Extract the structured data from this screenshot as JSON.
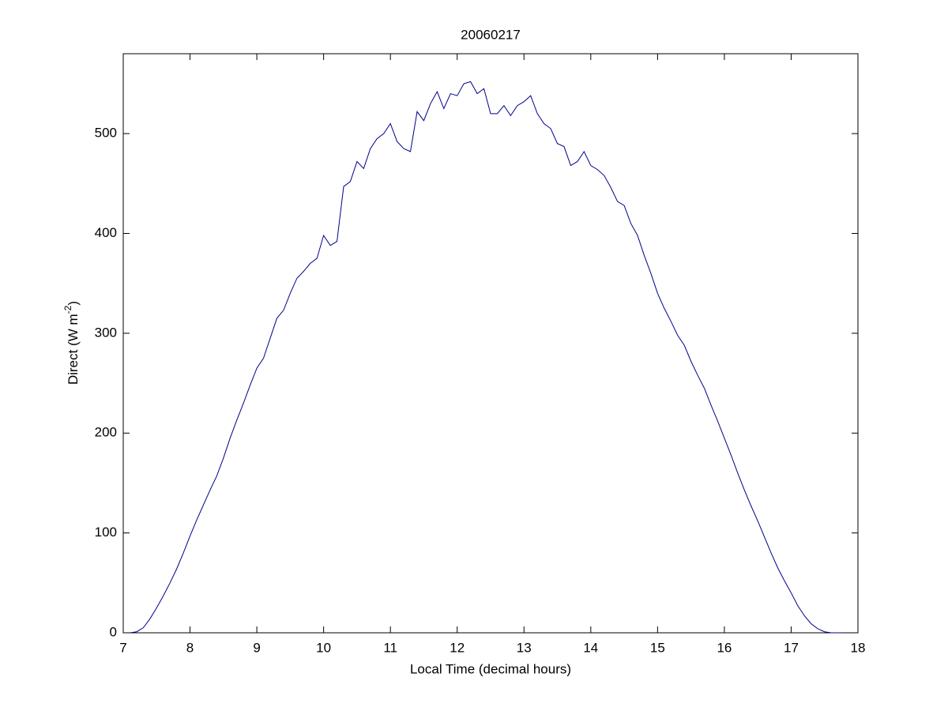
{
  "chart_data": {
    "type": "line",
    "title": "20060217",
    "xlabel": "Local Time (decimal hours)",
    "ylabel": "Direct (W m",
    "ylabel_superscript": "-2",
    "ylabel_suffix": ")",
    "xlim": [
      7,
      18
    ],
    "xticks": [
      7,
      8,
      9,
      10,
      11,
      12,
      13,
      14,
      15,
      16,
      17,
      18
    ],
    "ylim": [
      0,
      580
    ],
    "yticks": [
      0,
      100,
      200,
      300,
      400,
      500
    ],
    "grid": false,
    "series": [
      {
        "color": "#00008b",
        "x": [
          7.1,
          7.2,
          7.3,
          7.4,
          7.5,
          7.6,
          7.7,
          7.8,
          7.9,
          8.0,
          8.1,
          8.2,
          8.3,
          8.4,
          8.5,
          8.6,
          8.7,
          8.8,
          8.9,
          9.0,
          9.1,
          9.2,
          9.3,
          9.4,
          9.5,
          9.6,
          9.7,
          9.8,
          9.9,
          10.0,
          10.1,
          10.2,
          10.3,
          10.4,
          10.5,
          10.6,
          10.7,
          10.8,
          10.9,
          11.0,
          11.1,
          11.2,
          11.3,
          11.4,
          11.5,
          11.6,
          11.7,
          11.8,
          11.9,
          12.0,
          12.1,
          12.2,
          12.3,
          12.4,
          12.5,
          12.6,
          12.7,
          12.8,
          12.9,
          13.0,
          13.1,
          13.2,
          13.3,
          13.4,
          13.5,
          13.6,
          13.7,
          13.8,
          13.9,
          14.0,
          14.1,
          14.2,
          14.3,
          14.4,
          14.5,
          14.6,
          14.7,
          14.8,
          14.9,
          15.0,
          15.1,
          15.2,
          15.3,
          15.4,
          15.5,
          15.6,
          15.7,
          15.8,
          15.9,
          16.0,
          16.1,
          16.2,
          16.3,
          16.4,
          16.5,
          16.6,
          16.7,
          16.8,
          16.9,
          17.0,
          17.1,
          17.2,
          17.3,
          17.4,
          17.5,
          17.6,
          17.75
        ],
        "values": [
          0,
          1,
          5,
          14,
          25,
          37,
          50,
          64,
          80,
          97,
          113,
          128,
          143,
          157,
          175,
          195,
          213,
          230,
          248,
          265,
          275,
          295,
          315,
          323,
          340,
          355,
          362,
          370,
          375,
          398,
          388,
          392,
          447,
          452,
          472,
          465,
          485,
          495,
          500,
          510,
          492,
          485,
          482,
          522,
          513,
          530,
          542,
          525,
          540,
          538,
          550,
          552,
          540,
          545,
          520,
          520,
          528,
          518,
          528,
          532,
          538,
          520,
          510,
          505,
          490,
          487,
          468,
          472,
          482,
          468,
          464,
          458,
          446,
          432,
          428,
          410,
          398,
          378,
          360,
          340,
          325,
          312,
          298,
          288,
          272,
          258,
          245,
          228,
          212,
          195,
          178,
          160,
          143,
          127,
          112,
          96,
          80,
          65,
          52,
          40,
          27,
          17,
          9,
          4,
          1,
          0,
          0
        ]
      }
    ]
  }
}
